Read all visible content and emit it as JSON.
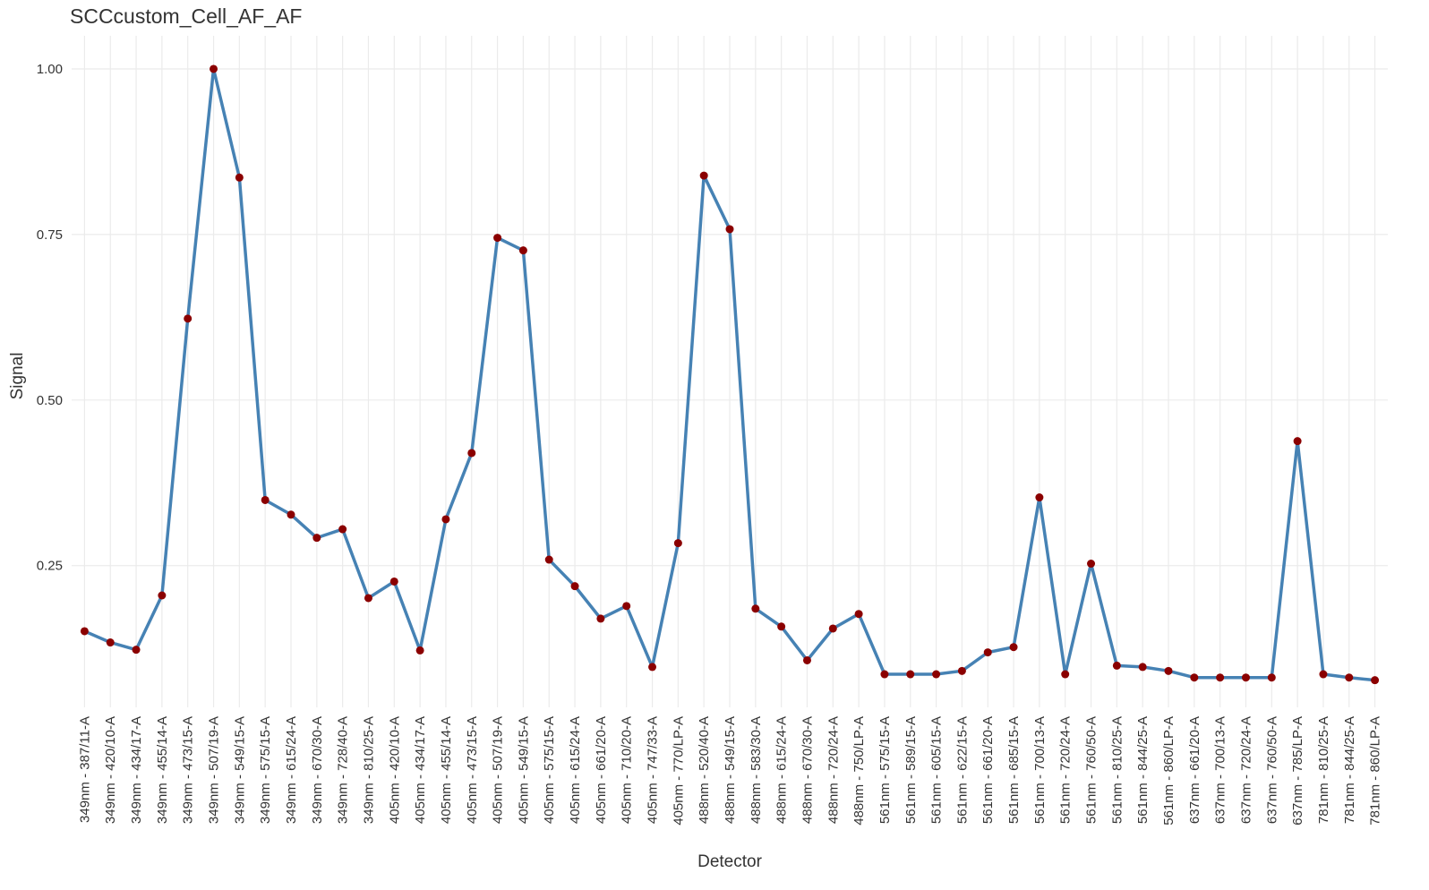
{
  "chart_data": {
    "type": "line",
    "title": "SCCcustom_Cell_AF_AF",
    "x_label": "Detector",
    "y_label": "Signal",
    "categories": [
      "349nm - 387/11-A",
      "349nm - 420/10-A",
      "349nm - 434/17-A",
      "349nm - 455/14-A",
      "349nm - 473/15-A",
      "349nm - 507/19-A",
      "349nm - 549/15-A",
      "349nm - 575/15-A",
      "349nm - 615/24-A",
      "349nm - 670/30-A",
      "349nm - 728/40-A",
      "349nm - 810/25-A",
      "405nm - 420/10-A",
      "405nm - 434/17-A",
      "405nm - 455/14-A",
      "405nm - 473/15-A",
      "405nm - 507/19-A",
      "405nm - 549/15-A",
      "405nm - 575/15-A",
      "405nm - 615/24-A",
      "405nm - 661/20-A",
      "405nm - 710/20-A",
      "405nm - 747/33-A",
      "405nm - 770/LP-A",
      "488nm - 520/40-A",
      "488nm - 549/15-A",
      "488nm - 583/30-A",
      "488nm - 615/24-A",
      "488nm - 670/30-A",
      "488nm - 720/24-A",
      "488nm - 750/LP-A",
      "561nm - 575/15-A",
      "561nm - 589/15-A",
      "561nm - 605/15-A",
      "561nm - 622/15-A",
      "561nm - 661/20-A",
      "561nm - 685/15-A",
      "561nm - 700/13-A",
      "561nm - 720/24-A",
      "561nm - 760/50-A",
      "561nm - 810/25-A",
      "561nm - 844/25-A",
      "561nm - 860/LP-A",
      "637nm - 661/20-A",
      "637nm - 700/13-A",
      "637nm - 720/24-A",
      "637nm - 760/50-A",
      "637nm - 785/LP-A",
      "781nm - 810/25-A",
      "781nm - 844/25-A",
      "781nm - 860/LP-A"
    ],
    "values": [
      0.151,
      0.134,
      0.123,
      0.205,
      0.623,
      1.0,
      0.836,
      0.349,
      0.327,
      0.292,
      0.305,
      0.201,
      0.226,
      0.122,
      0.32,
      0.42,
      0.745,
      0.726,
      0.259,
      0.219,
      0.17,
      0.189,
      0.097,
      0.284,
      0.839,
      0.758,
      0.185,
      0.158,
      0.107,
      0.155,
      0.177,
      0.086,
      0.086,
      0.086,
      0.091,
      0.119,
      0.127,
      0.353,
      0.086,
      0.253,
      0.099,
      0.097,
      0.091,
      0.081,
      0.081,
      0.081,
      0.081,
      0.438,
      0.086,
      0.081,
      0.077
    ],
    "line_color": "#4682b4",
    "marker_color": "#8b0000",
    "ylim": [
      0.036,
      1.05
    ],
    "yticks": [
      {
        "value": 0.25,
        "label": "0.25"
      },
      {
        "value": 0.5,
        "label": "0.50"
      },
      {
        "value": 0.75,
        "label": "0.75"
      },
      {
        "value": 1.0,
        "label": "1.00"
      }
    ],
    "grid": true
  }
}
